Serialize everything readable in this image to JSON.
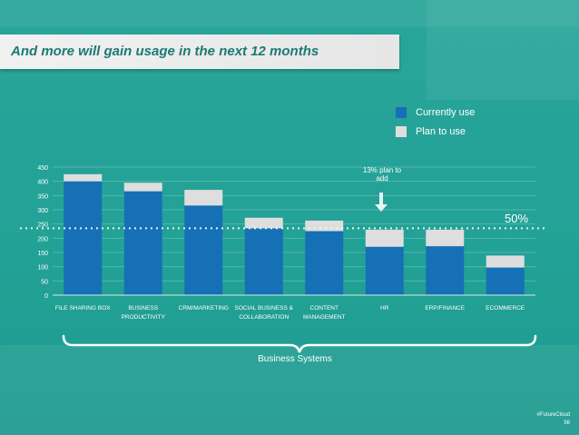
{
  "title": "And more will gain usage in the next 12 months",
  "legend": {
    "currently_use": "Currently use",
    "plan_to_use": "Plan to use"
  },
  "colors": {
    "currently_use": "#1670b5",
    "plan_to_use": "#dedede",
    "background": "#22a196",
    "title_text": "#1c7a73"
  },
  "annotation": {
    "plan_text": "13% plan to add",
    "fifty_label": "50%"
  },
  "group_label": "Business Systems",
  "footer": {
    "hashtag": "#FutureCloud",
    "page": "56"
  },
  "chart_data": {
    "type": "bar",
    "stacked": true,
    "title": "And more will gain usage in the next 12 months",
    "xlabel": "Business Systems",
    "ylabel": "",
    "ylim": [
      0,
      450
    ],
    "yticks": [
      0,
      50,
      100,
      150,
      200,
      250,
      300,
      350,
      400,
      450
    ],
    "categories": [
      [
        "FILE SHARING BOX"
      ],
      [
        "BUSINESS",
        "PRODUCTIVITY"
      ],
      [
        "CRM/MARKETING"
      ],
      [
        "SOCIAL BUSINESS &",
        "COLLABORATION"
      ],
      [
        "CONTENT",
        "MANAGEMENT"
      ],
      [
        "HR"
      ],
      [
        "ERP/FINANCE"
      ],
      [
        "ECOMMERCE"
      ]
    ],
    "series": [
      {
        "name": "Currently use",
        "values": [
          400,
          365,
          315,
          235,
          225,
          170,
          172,
          97
        ]
      },
      {
        "name": "Plan to use",
        "values": [
          25,
          30,
          55,
          37,
          37,
          60,
          58,
          42
        ]
      }
    ],
    "reference_line": {
      "value": 235,
      "label": "50%"
    }
  }
}
